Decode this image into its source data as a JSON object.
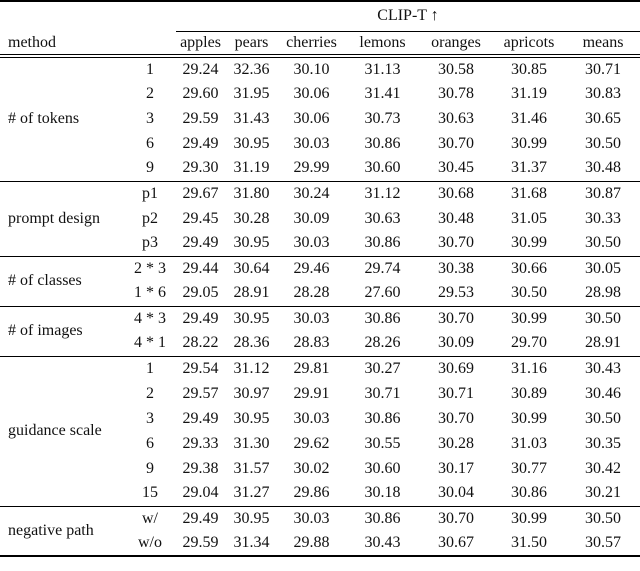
{
  "table": {
    "group_header": "CLIP-T ↑",
    "method_label": "method",
    "columns": [
      "apples",
      "pears",
      "cherries",
      "lemons",
      "oranges",
      "apricots",
      "means"
    ],
    "sections": [
      {
        "label": "# of tokens",
        "rows": [
          {
            "sub": "1",
            "values": [
              "29.24",
              "32.36",
              "30.10",
              "31.13",
              "30.58",
              "30.85",
              "30.71"
            ]
          },
          {
            "sub": "2",
            "values": [
              "29.60",
              "31.95",
              "30.06",
              "31.41",
              "30.78",
              "31.19",
              "30.83"
            ]
          },
          {
            "sub": "3",
            "values": [
              "29.59",
              "31.43",
              "30.06",
              "30.73",
              "30.63",
              "31.46",
              "30.65"
            ]
          },
          {
            "sub": "6",
            "values": [
              "29.49",
              "30.95",
              "30.03",
              "30.86",
              "30.70",
              "30.99",
              "30.50"
            ]
          },
          {
            "sub": "9",
            "values": [
              "29.30",
              "31.19",
              "29.99",
              "30.60",
              "30.45",
              "31.37",
              "30.48"
            ]
          }
        ]
      },
      {
        "label": "prompt design",
        "rows": [
          {
            "sub": "p1",
            "values": [
              "29.67",
              "31.80",
              "30.24",
              "31.12",
              "30.68",
              "31.68",
              "30.87"
            ]
          },
          {
            "sub": "p2",
            "values": [
              "29.45",
              "30.28",
              "30.09",
              "30.63",
              "30.48",
              "31.05",
              "30.33"
            ]
          },
          {
            "sub": "p3",
            "values": [
              "29.49",
              "30.95",
              "30.03",
              "30.86",
              "30.70",
              "30.99",
              "30.50"
            ]
          }
        ]
      },
      {
        "label": "# of classes",
        "rows": [
          {
            "sub": "2 * 3",
            "values": [
              "29.44",
              "30.64",
              "29.46",
              "29.74",
              "30.38",
              "30.66",
              "30.05"
            ]
          },
          {
            "sub": "1 * 6",
            "values": [
              "29.05",
              "28.91",
              "28.28",
              "27.60",
              "29.53",
              "30.50",
              "28.98"
            ]
          }
        ]
      },
      {
        "label": "# of images",
        "rows": [
          {
            "sub": "4 * 3",
            "values": [
              "29.49",
              "30.95",
              "30.03",
              "30.86",
              "30.70",
              "30.99",
              "30.50"
            ]
          },
          {
            "sub": "4 * 1",
            "values": [
              "28.22",
              "28.36",
              "28.83",
              "28.26",
              "30.09",
              "29.70",
              "28.91"
            ]
          }
        ]
      },
      {
        "label": "guidance scale",
        "rows": [
          {
            "sub": "1",
            "values": [
              "29.54",
              "31.12",
              "29.81",
              "30.27",
              "30.69",
              "31.16",
              "30.43"
            ]
          },
          {
            "sub": "2",
            "values": [
              "29.57",
              "30.97",
              "29.91",
              "30.71",
              "30.71",
              "30.89",
              "30.46"
            ]
          },
          {
            "sub": "3",
            "values": [
              "29.49",
              "30.95",
              "30.03",
              "30.86",
              "30.70",
              "30.99",
              "30.50"
            ]
          },
          {
            "sub": "6",
            "values": [
              "29.33",
              "31.30",
              "29.62",
              "30.55",
              "30.28",
              "31.03",
              "30.35"
            ]
          },
          {
            "sub": "9",
            "values": [
              "29.38",
              "31.57",
              "30.02",
              "30.60",
              "30.17",
              "30.77",
              "30.42"
            ]
          },
          {
            "sub": "15",
            "values": [
              "29.04",
              "31.27",
              "29.86",
              "30.18",
              "30.04",
              "30.86",
              "30.21"
            ]
          }
        ]
      },
      {
        "label": "negative path",
        "rows": [
          {
            "sub": "w/",
            "values": [
              "29.49",
              "30.95",
              "30.03",
              "30.86",
              "30.70",
              "30.99",
              "30.50"
            ]
          },
          {
            "sub": "w/o",
            "values": [
              "29.59",
              "31.34",
              "29.88",
              "30.43",
              "30.67",
              "31.50",
              "30.57"
            ]
          }
        ]
      }
    ]
  }
}
